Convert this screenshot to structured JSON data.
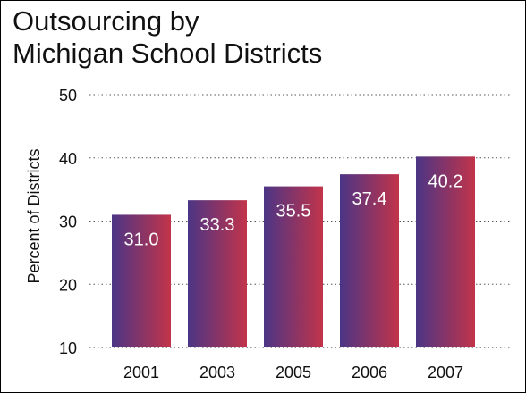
{
  "chart_data": {
    "type": "bar",
    "title_lines": [
      "Outsourcing by",
      "Michigan School Districts"
    ],
    "ylabel": "Percent of Districts",
    "xlabel": "",
    "categories": [
      "2001",
      "2003",
      "2005",
      "2006",
      "2007"
    ],
    "values": [
      31.0,
      33.3,
      35.5,
      37.4,
      40.2
    ],
    "data_labels": [
      "31.0",
      "33.3",
      "35.5",
      "37.4",
      "40.2"
    ],
    "ylim": [
      10,
      50
    ],
    "yticks": [
      10,
      20,
      30,
      40,
      50
    ],
    "grid": true,
    "bar_gradient": [
      "#4b3585",
      "#c2344a"
    ]
  }
}
